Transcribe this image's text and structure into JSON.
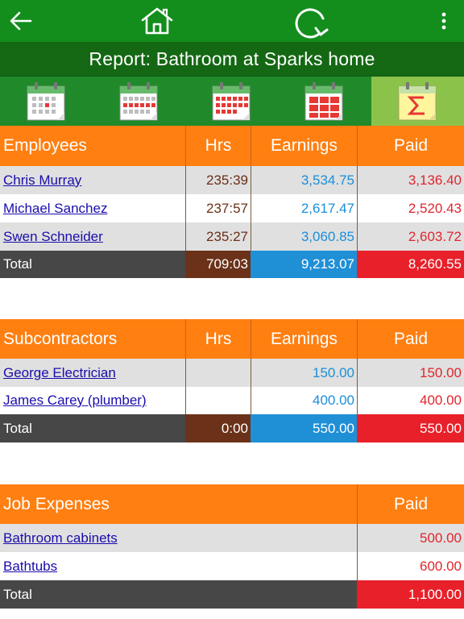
{
  "toolbar": {
    "back_icon": "arrow-left-icon",
    "home_icon": "home-icon",
    "refresh_icon": "refresh-icon",
    "menu_icon": "more-vertical-icon"
  },
  "title": "Report: Bathroom at Sparks home",
  "tabs": [
    {
      "icon": "calendar-day-icon",
      "active": false
    },
    {
      "icon": "calendar-week-icon",
      "active": false
    },
    {
      "icon": "calendar-month-icon",
      "active": false
    },
    {
      "icon": "calendar-year-icon",
      "active": false
    },
    {
      "icon": "sum-icon",
      "active": true
    }
  ],
  "employees": {
    "headers": {
      "name": "Employees",
      "hrs": "Hrs",
      "earnings": "Earnings",
      "paid": "Paid"
    },
    "rows": [
      {
        "name": "Chris Murray",
        "hrs": "235:39",
        "earnings": "3,534.75",
        "paid": "3,136.40"
      },
      {
        "name": "Michael Sanchez",
        "hrs": "237:57",
        "earnings": "2,617.47",
        "paid": "2,520.43"
      },
      {
        "name": "Swen Schneider",
        "hrs": "235:27",
        "earnings": "3,060.85",
        "paid": "2,603.72"
      }
    ],
    "total": {
      "label": "Total",
      "hrs": "709:03",
      "earnings": "9,213.07",
      "paid": "8,260.55"
    }
  },
  "subcontractors": {
    "headers": {
      "name": "Subcontractors",
      "hrs": "Hrs",
      "earnings": "Earnings",
      "paid": "Paid"
    },
    "rows": [
      {
        "name": "George Electrician",
        "hrs": "",
        "earnings": "150.00",
        "paid": "150.00"
      },
      {
        "name": "James Carey (plumber)",
        "hrs": "",
        "earnings": "400.00",
        "paid": "400.00"
      }
    ],
    "total": {
      "label": "Total",
      "hrs": "0:00",
      "earnings": "550.00",
      "paid": "550.00"
    }
  },
  "expenses": {
    "headers": {
      "name": "Job Expenses",
      "paid": "Paid"
    },
    "rows": [
      {
        "name": "Bathroom cabinets",
        "paid": "500.00"
      },
      {
        "name": "Bathtubs",
        "paid": "600.00"
      }
    ],
    "total": {
      "label": "Total",
      "paid": "1,100.00"
    }
  },
  "colors": {
    "toolbar": "#138e1c",
    "titlebar": "#146814",
    "header": "#ff7f11",
    "total_hrs": "#6b3219",
    "total_earnings": "#1f8fd6",
    "total_paid": "#e8202a"
  }
}
